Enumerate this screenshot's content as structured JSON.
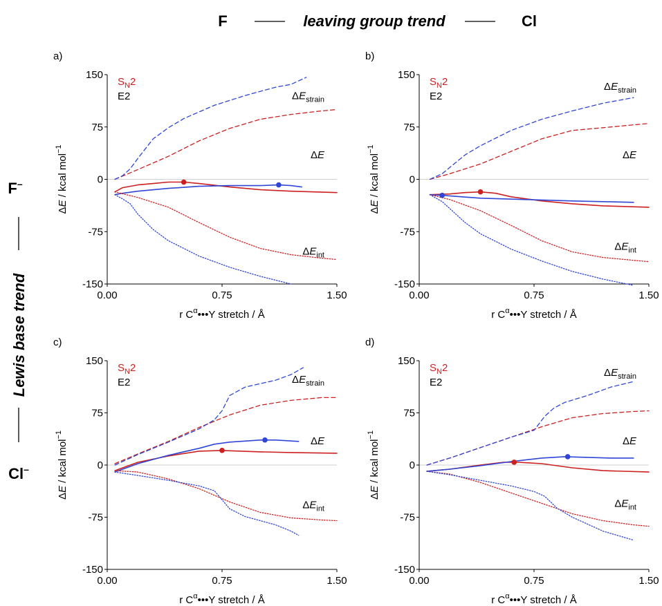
{
  "header": {
    "left_label": "F",
    "trend_label": "leaving group trend",
    "right_label": "Cl"
  },
  "side": {
    "top_label": "F",
    "bottom_label": "Cl",
    "charge": "–",
    "trend_label": "Lewis base trend"
  },
  "colors": {
    "sn2": "#cc1f1f",
    "e2": "#2f45d6",
    "zero_line": "#d0d0d0"
  },
  "legend": {
    "sn2_main": "S",
    "sn2_sub": "N",
    "sn2_tail": "2",
    "e2": "E2"
  },
  "labels": {
    "delta": "Δ",
    "E": "E",
    "strain_sub": "strain",
    "int_sub": "int"
  },
  "axes": {
    "ylabel_parts": [
      "Δ",
      "E",
      " / kcal mol",
      "−1"
    ],
    "xlabel_parts": [
      "r C",
      "α",
      "•••Y stretch / Å"
    ]
  },
  "chart_data": [
    {
      "panel": "a)",
      "type": "line",
      "xlim": [
        0,
        1.5
      ],
      "ylim": [
        -150,
        150
      ],
      "xticks": [
        "0.00",
        "0.75",
        "1.50"
      ],
      "yticks": [
        "150",
        "75",
        "0",
        "-75",
        "-150"
      ],
      "series": [
        {
          "name": "SN2 ΔE_strain",
          "style": "dashed",
          "color": "sn2",
          "x": [
            0.05,
            0.2,
            0.4,
            0.6,
            0.8,
            1.0,
            1.2,
            1.4,
            1.5
          ],
          "y": [
            0,
            14,
            33,
            55,
            73,
            86,
            93,
            98,
            100
          ]
        },
        {
          "name": "E2 ΔE_strain",
          "style": "dashed",
          "color": "e2",
          "x": [
            0.05,
            0.1,
            0.15,
            0.2,
            0.3,
            0.4,
            0.5,
            0.7,
            0.9,
            1.0,
            1.1,
            1.2,
            1.3
          ],
          "y": [
            0,
            5,
            15,
            30,
            58,
            74,
            87,
            106,
            120,
            126,
            132,
            136,
            146
          ]
        },
        {
          "name": "SN2 ΔE",
          "style": "solid",
          "color": "sn2",
          "x": [
            0.05,
            0.1,
            0.2,
            0.3,
            0.4,
            0.5,
            0.6,
            0.8,
            1.0,
            1.2,
            1.5
          ],
          "y": [
            -18,
            -12,
            -8,
            -6,
            -4,
            -4,
            -6,
            -11,
            -15,
            -17,
            -19
          ]
        },
        {
          "name": "E2 ΔE",
          "style": "solid",
          "color": "e2",
          "x": [
            0.05,
            0.1,
            0.2,
            0.4,
            0.6,
            0.8,
            1.0,
            1.12,
            1.2,
            1.27
          ],
          "y": [
            -22,
            -20,
            -17,
            -13,
            -10,
            -9,
            -9,
            -8,
            -9,
            -11
          ]
        },
        {
          "name": "SN2 ΔE_int",
          "style": "dotted",
          "color": "sn2",
          "x": [
            0.05,
            0.2,
            0.4,
            0.6,
            0.8,
            1.0,
            1.2,
            1.4,
            1.5
          ],
          "y": [
            -18,
            -26,
            -40,
            -62,
            -83,
            -99,
            -108,
            -113,
            -115
          ]
        },
        {
          "name": "E2 ΔE_int",
          "style": "dotted",
          "color": "e2",
          "x": [
            0.05,
            0.1,
            0.15,
            0.2,
            0.3,
            0.4,
            0.6,
            0.8,
            1.0,
            1.2
          ],
          "y": [
            -22,
            -28,
            -35,
            -50,
            -72,
            -88,
            -110,
            -126,
            -139,
            -150
          ]
        }
      ],
      "markers": [
        {
          "series": "SN2",
          "x": 0.5,
          "y": -4
        },
        {
          "series": "E2",
          "x": 1.12,
          "y": -8
        }
      ],
      "annotations": {
        "strain_y": 115,
        "de_y": 30,
        "int_y": -108
      }
    },
    {
      "panel": "b)",
      "type": "line",
      "xlim": [
        0,
        1.5
      ],
      "ylim": [
        -150,
        150
      ],
      "xticks": [
        "0.00",
        "0.75",
        "1.50"
      ],
      "yticks": [
        "150",
        "75",
        "0",
        "-75",
        "-150"
      ],
      "series": [
        {
          "name": "SN2 ΔE_strain",
          "style": "dashed",
          "color": "sn2",
          "x": [
            0.07,
            0.2,
            0.4,
            0.6,
            0.8,
            1.0,
            1.2,
            1.4,
            1.5
          ],
          "y": [
            0,
            8,
            22,
            40,
            58,
            70,
            74,
            78,
            80
          ]
        },
        {
          "name": "E2 ΔE_strain",
          "style": "dashed",
          "color": "e2",
          "x": [
            0.07,
            0.15,
            0.2,
            0.3,
            0.4,
            0.6,
            0.8,
            1.0,
            1.2,
            1.4
          ],
          "y": [
            0,
            8,
            17,
            35,
            48,
            70,
            86,
            98,
            109,
            117
          ]
        },
        {
          "name": "SN2 ΔE",
          "style": "solid",
          "color": "sn2",
          "x": [
            0.07,
            0.2,
            0.3,
            0.4,
            0.5,
            0.6,
            0.8,
            1.0,
            1.2,
            1.5
          ],
          "y": [
            -22,
            -21,
            -19,
            -18,
            -20,
            -25,
            -31,
            -35,
            -38,
            -40
          ]
        },
        {
          "name": "E2 ΔE",
          "style": "solid",
          "color": "e2",
          "x": [
            0.07,
            0.15,
            0.4,
            0.7,
            1.0,
            1.2,
            1.4
          ],
          "y": [
            -22,
            -23,
            -27,
            -29,
            -31,
            -32,
            -33
          ]
        },
        {
          "name": "SN2 ΔE_int",
          "style": "dotted",
          "color": "sn2",
          "x": [
            0.07,
            0.2,
            0.4,
            0.6,
            0.8,
            1.0,
            1.2,
            1.4,
            1.5
          ],
          "y": [
            -22,
            -29,
            -45,
            -66,
            -88,
            -104,
            -112,
            -116,
            -118
          ]
        },
        {
          "name": "E2 ΔE_int",
          "style": "dotted",
          "color": "e2",
          "x": [
            0.07,
            0.15,
            0.2,
            0.3,
            0.4,
            0.6,
            0.8,
            1.0,
            1.2,
            1.4
          ],
          "y": [
            -22,
            -32,
            -42,
            -62,
            -78,
            -100,
            -117,
            -132,
            -143,
            -152
          ]
        }
      ],
      "markers": [
        {
          "series": "SN2",
          "x": 0.4,
          "y": -18
        },
        {
          "series": "E2",
          "x": 0.15,
          "y": -23
        }
      ],
      "annotations": {
        "strain_y": 128,
        "de_y": 30,
        "int_y": -101
      }
    },
    {
      "panel": "c)",
      "type": "line",
      "xlim": [
        0,
        1.5
      ],
      "ylim": [
        -150,
        150
      ],
      "xticks": [
        "0.00",
        "0.75",
        "1.50"
      ],
      "yticks": [
        "150",
        "75",
        "0",
        "-75",
        "-150"
      ],
      "series": [
        {
          "name": "SN2 ΔE_strain",
          "style": "dashed",
          "color": "sn2",
          "x": [
            0.05,
            0.2,
            0.4,
            0.6,
            0.8,
            1.0,
            1.2,
            1.4,
            1.5
          ],
          "y": [
            2,
            16,
            34,
            54,
            72,
            86,
            93,
            97,
            97
          ]
        },
        {
          "name": "E2 ΔE_strain",
          "style": "dashed",
          "color": "e2",
          "x": [
            0.05,
            0.2,
            0.4,
            0.6,
            0.7,
            0.75,
            0.8,
            0.9,
            1.0,
            1.1,
            1.2,
            1.28
          ],
          "y": [
            0,
            15,
            33,
            52,
            65,
            78,
            100,
            112,
            117,
            122,
            130,
            140
          ]
        },
        {
          "name": "SN2 ΔE",
          "style": "solid",
          "color": "sn2",
          "x": [
            0.05,
            0.2,
            0.4,
            0.6,
            0.75,
            1.0,
            1.2,
            1.5
          ],
          "y": [
            -8,
            4,
            13,
            20,
            21,
            19,
            18,
            17
          ]
        },
        {
          "name": "E2 ΔE",
          "style": "solid",
          "color": "e2",
          "x": [
            0.05,
            0.2,
            0.4,
            0.6,
            0.7,
            0.8,
            1.0,
            1.1,
            1.25
          ],
          "y": [
            -10,
            2,
            14,
            24,
            30,
            33,
            36,
            36,
            34
          ]
        },
        {
          "name": "SN2 ΔE_int",
          "style": "dotted",
          "color": "sn2",
          "x": [
            0.05,
            0.2,
            0.4,
            0.6,
            0.8,
            1.0,
            1.2,
            1.4,
            1.5
          ],
          "y": [
            -8,
            -10,
            -20,
            -34,
            -53,
            -68,
            -76,
            -79,
            -80
          ]
        },
        {
          "name": "E2 ΔE_int",
          "style": "dotted",
          "color": "e2",
          "x": [
            0.05,
            0.2,
            0.4,
            0.6,
            0.7,
            0.75,
            0.8,
            0.9,
            1.0,
            1.1,
            1.2,
            1.25
          ],
          "y": [
            -10,
            -15,
            -22,
            -30,
            -37,
            -50,
            -63,
            -74,
            -80,
            -86,
            -95,
            -101
          ]
        }
      ],
      "markers": [
        {
          "series": "SN2",
          "x": 0.75,
          "y": 21
        },
        {
          "series": "E2",
          "x": 1.03,
          "y": 36
        }
      ],
      "annotations": {
        "strain_y": 118,
        "de_y": 30,
        "int_y": -62
      }
    },
    {
      "panel": "d)",
      "type": "line",
      "xlim": [
        0,
        1.5
      ],
      "ylim": [
        -150,
        150
      ],
      "xticks": [
        "0.00",
        "0.75",
        "1.50"
      ],
      "yticks": [
        "150",
        "75",
        "0",
        "-75",
        "-150"
      ],
      "series": [
        {
          "name": "SN2 ΔE_strain",
          "style": "dashed",
          "color": "sn2",
          "x": [
            0.05,
            0.2,
            0.4,
            0.6,
            0.8,
            1.0,
            1.2,
            1.4,
            1.5
          ],
          "y": [
            0,
            10,
            25,
            40,
            55,
            68,
            74,
            77,
            78
          ]
        },
        {
          "name": "E2 ΔE_strain",
          "style": "dashed",
          "color": "e2",
          "x": [
            0.05,
            0.2,
            0.4,
            0.6,
            0.75,
            0.82,
            0.88,
            0.95,
            1.1,
            1.25,
            1.4
          ],
          "y": [
            0,
            10,
            25,
            40,
            50,
            70,
            82,
            90,
            100,
            112,
            120
          ]
        },
        {
          "name": "SN2 ΔE",
          "style": "solid",
          "color": "sn2",
          "x": [
            0.05,
            0.2,
            0.4,
            0.55,
            0.65,
            0.8,
            1.0,
            1.2,
            1.5
          ],
          "y": [
            -9,
            -6,
            0,
            4,
            4,
            2,
            -4,
            -8,
            -10
          ]
        },
        {
          "name": "E2 ΔE",
          "style": "solid",
          "color": "e2",
          "x": [
            0.05,
            0.2,
            0.4,
            0.6,
            0.8,
            0.95,
            1.1,
            1.25,
            1.4
          ],
          "y": [
            -9,
            -6,
            -1,
            5,
            10,
            12,
            11,
            10,
            10
          ]
        },
        {
          "name": "SN2 ΔE_int",
          "style": "dotted",
          "color": "sn2",
          "x": [
            0.05,
            0.2,
            0.4,
            0.6,
            0.8,
            1.0,
            1.2,
            1.4,
            1.5
          ],
          "y": [
            -9,
            -13,
            -25,
            -40,
            -55,
            -70,
            -80,
            -86,
            -88
          ]
        },
        {
          "name": "E2 ΔE_int",
          "style": "dotted",
          "color": "e2",
          "x": [
            0.05,
            0.2,
            0.4,
            0.6,
            0.75,
            0.82,
            0.9,
            1.0,
            1.2,
            1.4
          ],
          "y": [
            -9,
            -14,
            -22,
            -30,
            -38,
            -45,
            -62,
            -75,
            -95,
            -108
          ]
        }
      ],
      "markers": [
        {
          "series": "SN2",
          "x": 0.62,
          "y": 4
        },
        {
          "series": "E2",
          "x": 0.97,
          "y": 12
        }
      ],
      "annotations": {
        "strain_y": 128,
        "de_y": 30,
        "int_y": -60
      }
    }
  ]
}
